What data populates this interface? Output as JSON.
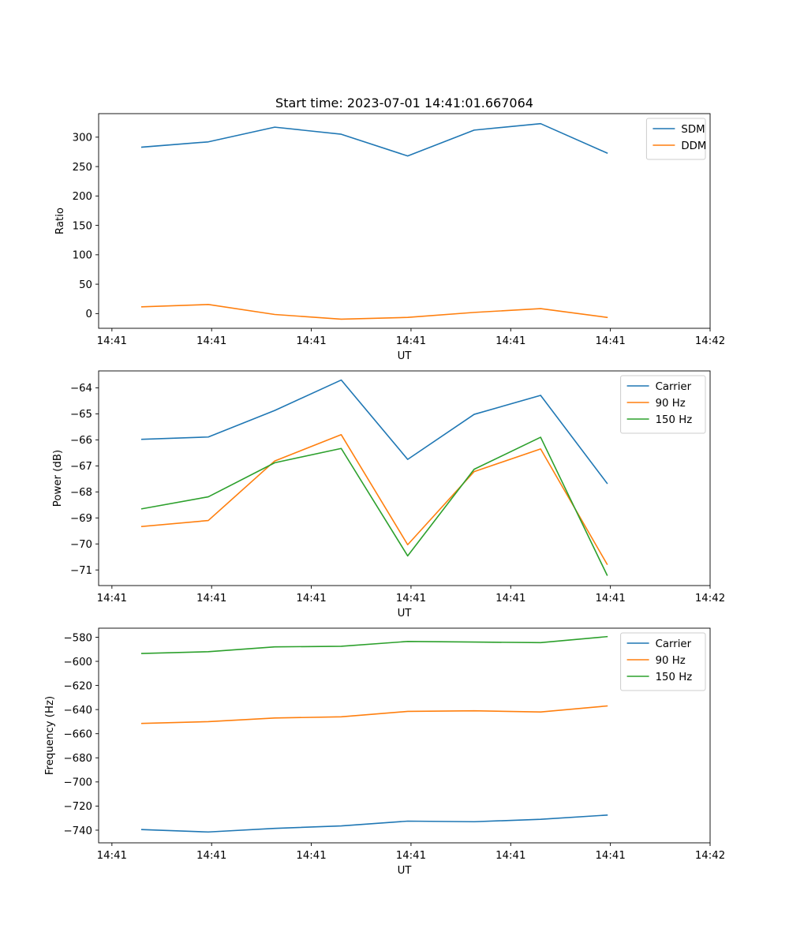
{
  "figure": {
    "title": "Start time: 2023-07-01 14:41:01.667064"
  },
  "colors": {
    "series1": "#1f77b4",
    "series2": "#ff7f0e",
    "series3": "#2ca02c",
    "axes": "#000000",
    "legend_border": "#cccccc"
  },
  "chart_data": [
    {
      "type": "line",
      "title": "Start time: 2023-07-01 14:41:01.667064",
      "xlabel": "UT",
      "ylabel": "Ratio",
      "xlim": [
        -0.65,
        8.55
      ],
      "ylim": [
        -25,
        340
      ],
      "xticks": [
        -0.45,
        1.05,
        2.55,
        4.05,
        5.55,
        7.05,
        8.55
      ],
      "xtick_labels": [
        "14:41",
        "14:41",
        "14:41",
        "14:41",
        "14:41",
        "14:41",
        "14:42"
      ],
      "yticks": [
        0,
        50,
        100,
        150,
        200,
        250,
        300
      ],
      "ytick_labels": [
        "0",
        "50",
        "100",
        "150",
        "200",
        "250",
        "300"
      ],
      "x": [
        0,
        1,
        2,
        3,
        4,
        5,
        6,
        7
      ],
      "series": [
        {
          "name": "SDM",
          "color": "#1f77b4",
          "values": [
            283,
            292,
            317,
            305,
            268,
            312,
            323,
            273
          ]
        },
        {
          "name": "DDM",
          "color": "#ff7f0e",
          "values": [
            11.5,
            15.5,
            -1.5,
            -9.5,
            -6.5,
            2,
            8.5,
            -6.5
          ]
        }
      ],
      "legend": "top-right"
    },
    {
      "type": "line",
      "title": "",
      "xlabel": "UT",
      "ylabel": "Power (dB)",
      "xlim": [
        -0.65,
        8.55
      ],
      "ylim": [
        -71.6,
        -63.35
      ],
      "xticks": [
        -0.45,
        1.05,
        2.55,
        4.05,
        5.55,
        7.05,
        8.55
      ],
      "xtick_labels": [
        "14:41",
        "14:41",
        "14:41",
        "14:41",
        "14:41",
        "14:41",
        "14:42"
      ],
      "yticks": [
        -71,
        -70,
        -69,
        -68,
        -67,
        -66,
        -65,
        -64
      ],
      "ytick_labels": [
        "−71",
        "−70",
        "−69",
        "−68",
        "−67",
        "−66",
        "−65",
        "−64"
      ],
      "x": [
        0,
        1,
        2,
        3,
        4,
        5,
        6,
        7
      ],
      "series": [
        {
          "name": "Carrier",
          "color": "#1f77b4",
          "values": [
            -65.98,
            -65.89,
            -64.87,
            -63.7,
            -66.75,
            -65.02,
            -64.29,
            -67.67
          ]
        },
        {
          "name": "90 Hz",
          "color": "#ff7f0e",
          "values": [
            -69.33,
            -69.1,
            -66.81,
            -65.8,
            -70.03,
            -67.22,
            -66.35,
            -70.78
          ]
        },
        {
          "name": "150 Hz",
          "color": "#2ca02c",
          "values": [
            -68.65,
            -68.19,
            -66.88,
            -66.33,
            -70.46,
            -67.13,
            -65.9,
            -71.2
          ]
        }
      ],
      "legend": "top-right"
    },
    {
      "type": "line",
      "title": "",
      "xlabel": "UT",
      "ylabel": "Frequency (Hz)",
      "xlim": [
        -0.65,
        8.55
      ],
      "ylim": [
        -750.5,
        -572.5
      ],
      "xticks": [
        -0.45,
        1.05,
        2.55,
        4.05,
        5.55,
        7.05,
        8.55
      ],
      "xtick_labels": [
        "14:41",
        "14:41",
        "14:41",
        "14:41",
        "14:41",
        "14:41",
        "14:42"
      ],
      "yticks": [
        -740,
        -720,
        -700,
        -680,
        -660,
        -640,
        -620,
        -600,
        -580
      ],
      "ytick_labels": [
        "−740",
        "−720",
        "−700",
        "−680",
        "−660",
        "−640",
        "−620",
        "−600",
        "−580"
      ],
      "x": [
        0,
        1,
        2,
        3,
        4,
        5,
        6,
        7
      ],
      "series": [
        {
          "name": "Carrier",
          "color": "#1f77b4",
          "values": [
            -739.5,
            -741.5,
            -738.5,
            -736.5,
            -732.5,
            -733,
            -731,
            -727.5
          ]
        },
        {
          "name": "90 Hz",
          "color": "#ff7f0e",
          "values": [
            -651.5,
            -650,
            -647,
            -646,
            -641.5,
            -641,
            -642,
            -637
          ]
        },
        {
          "name": "150 Hz",
          "color": "#2ca02c",
          "values": [
            -593.5,
            -592,
            -588,
            -587.5,
            -583.5,
            -584,
            -584.5,
            -579.5
          ]
        }
      ],
      "legend": "top-right"
    }
  ]
}
